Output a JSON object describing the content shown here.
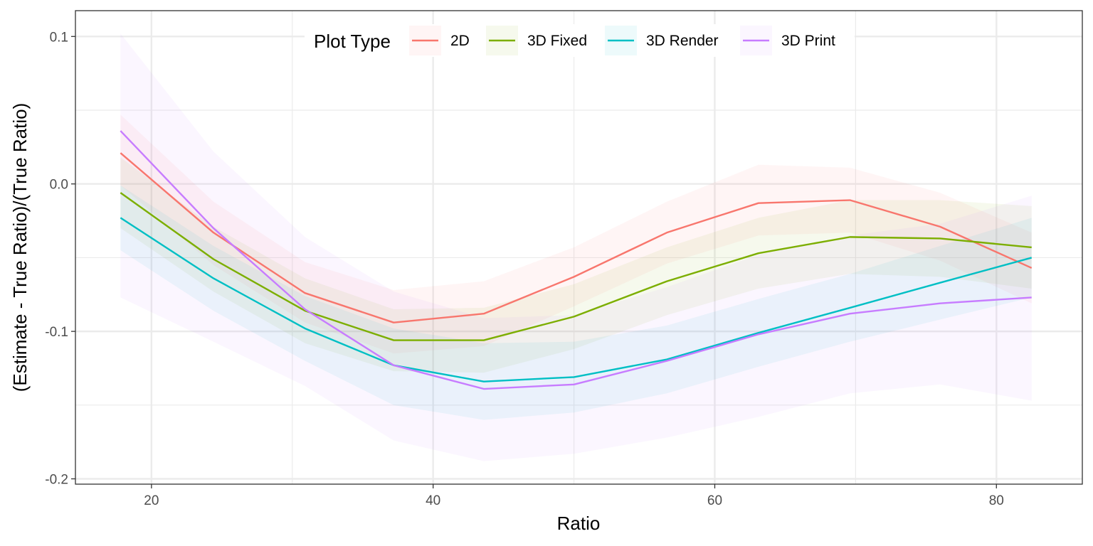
{
  "chart_data": {
    "type": "line",
    "title": "",
    "xlabel": "Ratio",
    "ylabel": "(Estimate - True Ratio)/(True Ratio)",
    "xlim": [
      14.6,
      86.1
    ],
    "ylim": [
      -0.2036,
      0.1175
    ],
    "x_ticks": [
      20,
      40,
      60,
      80
    ],
    "x_tick_labels": [
      "20",
      "40",
      "60",
      "80"
    ],
    "x_minor_ticks": [
      30,
      50,
      70
    ],
    "y_ticks": [
      0.1,
      0.0,
      -0.1,
      -0.2
    ],
    "y_tick_labels": [
      "0.1",
      "0.0",
      "-0.1",
      "-0.2"
    ],
    "y_minor_ticks": [
      0.05,
      -0.05,
      -0.15
    ],
    "grid": true,
    "legend": {
      "title": "Plot Type",
      "position": "top-inside",
      "entries": [
        "2D",
        "3D Fixed",
        "3D Render",
        "3D Print"
      ]
    },
    "x": [
      17.8,
      24.4,
      30.9,
      37.2,
      43.6,
      50.0,
      56.6,
      63.1,
      69.6,
      76.0,
      82.5
    ],
    "series": [
      {
        "name": "2D",
        "color": "#F8766D",
        "values": [
          0.021,
          -0.033,
          -0.074,
          -0.094,
          -0.088,
          -0.063,
          -0.033,
          -0.013,
          -0.011,
          -0.029,
          -0.057
        ],
        "lower": [
          -0.001,
          -0.055,
          -0.094,
          -0.115,
          -0.11,
          -0.083,
          -0.054,
          -0.035,
          -0.033,
          -0.052,
          -0.081
        ],
        "upper": [
          0.047,
          -0.012,
          -0.053,
          -0.072,
          -0.066,
          -0.043,
          -0.012,
          0.013,
          0.011,
          -0.006,
          -0.033
        ]
      },
      {
        "name": "3D Fixed",
        "color": "#7CAE00",
        "values": [
          -0.006,
          -0.051,
          -0.086,
          -0.106,
          -0.106,
          -0.09,
          -0.066,
          -0.047,
          -0.036,
          -0.037,
          -0.043
        ],
        "lower": [
          -0.03,
          -0.073,
          -0.108,
          -0.127,
          -0.128,
          -0.112,
          -0.089,
          -0.071,
          -0.061,
          -0.063,
          -0.071
        ],
        "upper": [
          0.018,
          -0.029,
          -0.064,
          -0.085,
          -0.084,
          -0.068,
          -0.043,
          -0.023,
          -0.011,
          -0.011,
          -0.015
        ]
      },
      {
        "name": "3D Render",
        "color": "#00BFC4",
        "values": [
          -0.023,
          -0.064,
          -0.098,
          -0.123,
          -0.134,
          -0.131,
          -0.119,
          -0.101,
          -0.084,
          -0.067,
          -0.05
        ],
        "lower": [
          -0.045,
          -0.086,
          -0.12,
          -0.15,
          -0.16,
          -0.155,
          -0.142,
          -0.124,
          -0.107,
          -0.092,
          -0.077
        ],
        "upper": [
          -0.001,
          -0.042,
          -0.076,
          -0.098,
          -0.108,
          -0.107,
          -0.096,
          -0.078,
          -0.061,
          -0.042,
          -0.023
        ]
      },
      {
        "name": "3D Print",
        "color": "#C77CFF",
        "values": [
          0.036,
          -0.03,
          -0.085,
          -0.123,
          -0.139,
          -0.136,
          -0.12,
          -0.102,
          -0.088,
          -0.081,
          -0.077
        ],
        "lower": [
          -0.077,
          -0.107,
          -0.137,
          -0.174,
          -0.188,
          -0.183,
          -0.172,
          -0.158,
          -0.142,
          -0.136,
          -0.147
        ],
        "upper": [
          0.102,
          0.022,
          -0.036,
          -0.073,
          -0.091,
          -0.089,
          -0.07,
          -0.048,
          -0.035,
          -0.027,
          -0.008
        ]
      }
    ]
  }
}
